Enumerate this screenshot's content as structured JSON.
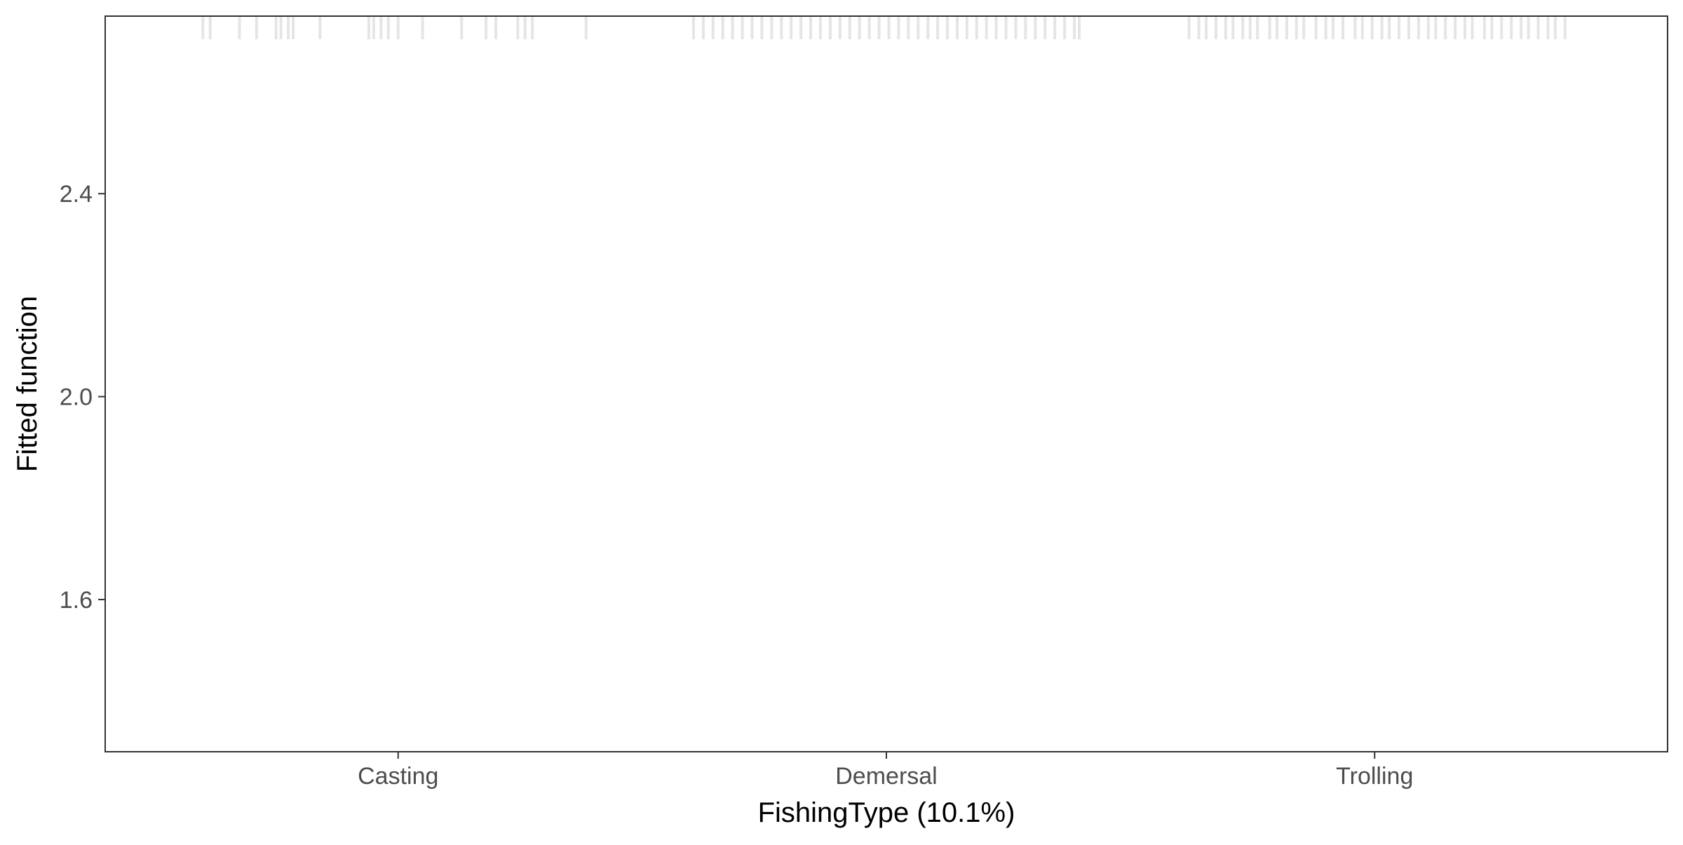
{
  "chart_data": {
    "type": "rug",
    "title": "",
    "xlabel": "FishingType  (10.1%)",
    "ylabel": "Fitted function",
    "categories": [
      "Casting",
      "Demersal",
      "Trolling"
    ],
    "x_positions": [
      1,
      2,
      3
    ],
    "xlim": [
      0.4,
      3.6
    ],
    "ylim": [
      1.3,
      2.75
    ],
    "yticks": [
      1.6,
      2.0,
      2.4
    ],
    "ytick_labels": [
      "1.6",
      "2.0",
      "2.4"
    ],
    "grid": false,
    "rug": {
      "position": "top",
      "color": "#e5e5e5",
      "x": [
        0.6,
        0.615,
        0.675,
        0.71,
        0.75,
        0.76,
        0.775,
        0.785,
        0.84,
        0.94,
        0.95,
        0.965,
        0.98,
        1.0,
        1.05,
        1.13,
        1.18,
        1.2,
        1.245,
        1.26,
        1.275,
        1.385,
        1.605,
        1.625,
        1.645,
        1.665,
        1.685,
        1.705,
        1.725,
        1.745,
        1.765,
        1.785,
        1.805,
        1.825,
        1.845,
        1.865,
        1.885,
        1.905,
        1.925,
        1.945,
        1.965,
        1.985,
        2.005,
        2.025,
        2.045,
        2.065,
        2.085,
        2.105,
        2.125,
        2.145,
        2.165,
        2.185,
        2.205,
        2.225,
        2.245,
        2.265,
        2.285,
        2.305,
        2.325,
        2.345,
        2.365,
        2.385,
        2.395,
        2.62,
        2.64,
        2.655,
        2.675,
        2.695,
        2.71,
        2.73,
        2.745,
        2.76,
        2.785,
        2.8,
        2.82,
        2.84,
        2.855,
        2.88,
        2.9,
        2.915,
        2.935,
        2.96,
        2.975,
        2.995,
        3.015,
        3.03,
        3.05,
        3.07,
        3.09,
        3.11,
        3.125,
        3.145,
        3.165,
        3.185,
        3.2,
        3.225,
        3.24,
        3.26,
        3.28,
        3.3,
        3.315,
        3.335,
        3.355,
        3.37,
        3.39
      ]
    },
    "series": []
  }
}
